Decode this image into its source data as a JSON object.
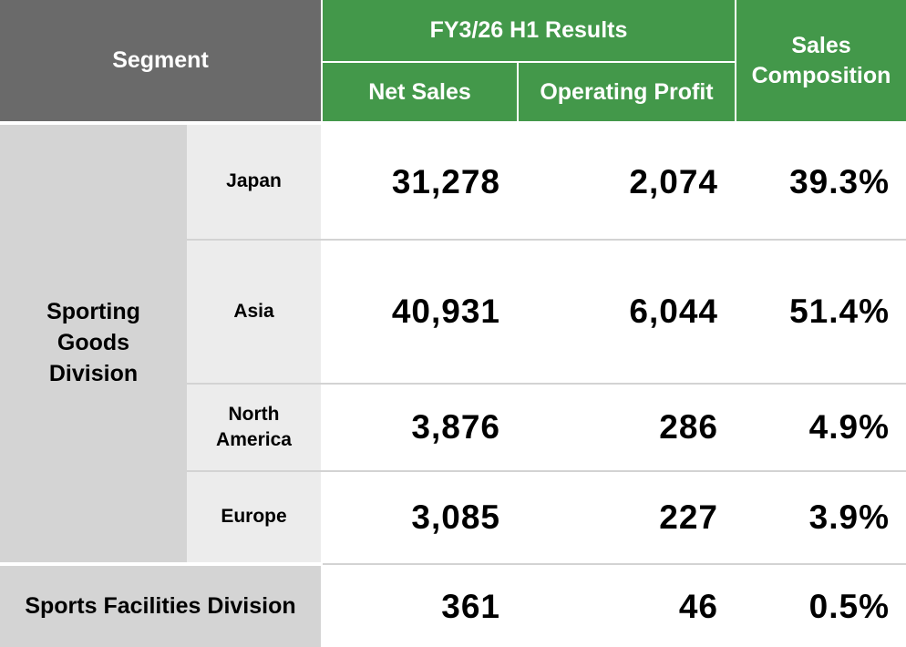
{
  "header": {
    "segment": "Segment",
    "group": "FY3/26 H1 Results",
    "net_sales": "Net Sales",
    "operating_profit": "Operating Profit",
    "sales_composition": "Sales Composition"
  },
  "division": "Sporting Goods Division",
  "rows": [
    {
      "region": "Japan",
      "net_sales": "31,278",
      "operating_profit": "2,074",
      "composition": "39.3%"
    },
    {
      "region": "Asia",
      "net_sales": "40,931",
      "operating_profit": "6,044",
      "composition": "51.4%"
    },
    {
      "region": "North America",
      "net_sales": "3,876",
      "operating_profit": "286",
      "composition": "4.9%"
    },
    {
      "region": "Europe",
      "net_sales": "3,085",
      "operating_profit": "227",
      "composition": "3.9%"
    }
  ],
  "facilities": {
    "label": "Sports Facilities Division",
    "net_sales": "361",
    "operating_profit": "46",
    "composition": "0.5%"
  }
}
